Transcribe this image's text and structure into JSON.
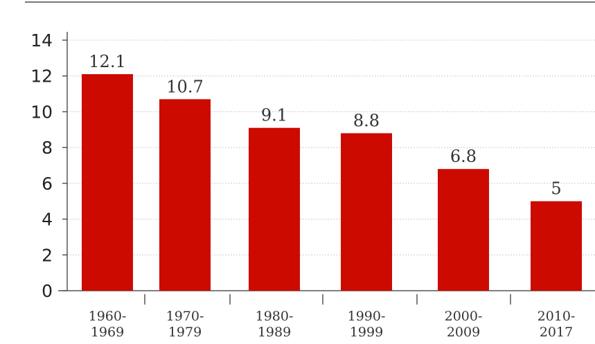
{
  "chart_data": {
    "type": "bar",
    "categories": [
      [
        "1960-",
        "1969"
      ],
      [
        "1970-",
        "1979"
      ],
      [
        "1980-",
        "1989"
      ],
      [
        "1990-",
        "1999"
      ],
      [
        "2000-",
        "2009"
      ],
      [
        "2010-",
        "2017"
      ]
    ],
    "values": [
      12.1,
      10.7,
      9.1,
      8.8,
      6.8,
      5
    ],
    "value_labels": [
      "12.1",
      "10.7",
      "9.1",
      "8.8",
      "6.8",
      "5"
    ],
    "yticks": [
      0,
      2,
      4,
      6,
      8,
      10,
      12,
      14
    ],
    "ylim": [
      0,
      14
    ],
    "grid": true,
    "title": "",
    "xlabel": "",
    "ylabel": "",
    "colors": {
      "bar": "#cc0a00",
      "axis": "#555555",
      "grid": "#cccccc",
      "top_rule": "#777777"
    }
  }
}
